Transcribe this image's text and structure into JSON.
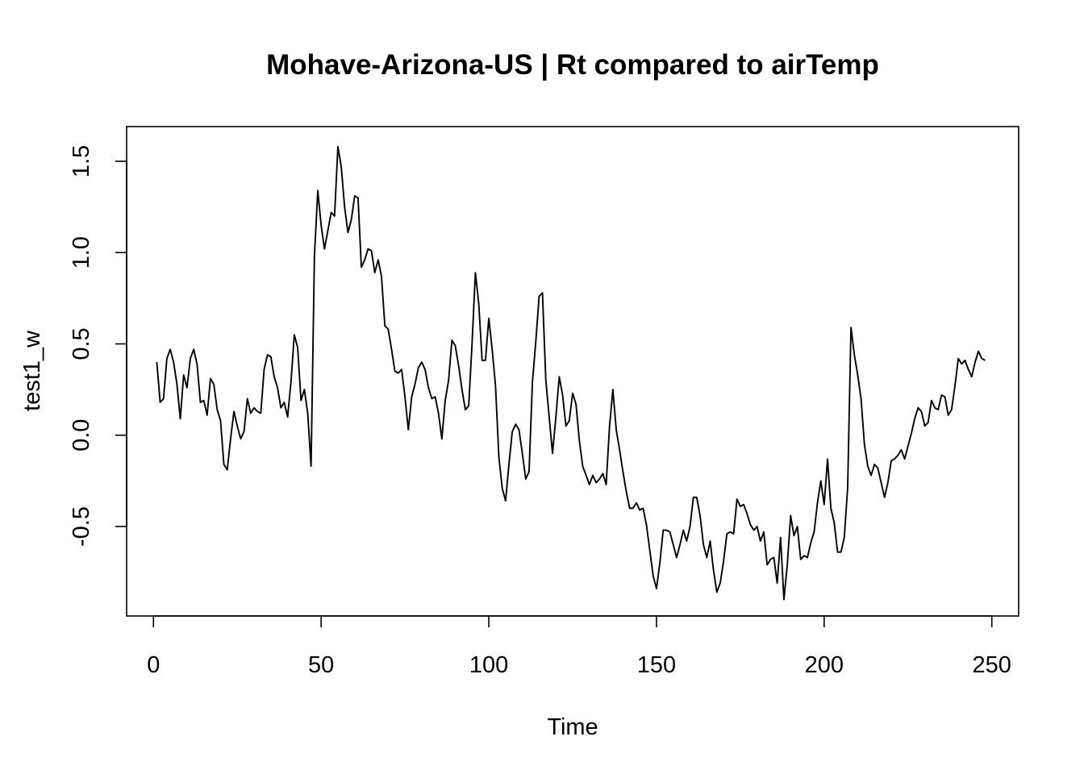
{
  "chart_data": {
    "type": "line",
    "title": "Mohave-Arizona-US | Rt compared to airTemp",
    "xlabel": "Time",
    "ylabel": "test1_w",
    "xlim": [
      -8,
      258
    ],
    "ylim": [
      -0.99,
      1.69
    ],
    "x_ticks": [
      0,
      50,
      100,
      150,
      200,
      250
    ],
    "x_tick_labels": [
      "0",
      "50",
      "100",
      "150",
      "200",
      "250"
    ],
    "y_ticks": [
      -0.5,
      0.0,
      0.5,
      1.0,
      1.5
    ],
    "y_tick_labels": [
      "-0.5",
      "0.0",
      "0.5",
      "1.0",
      "1.5"
    ],
    "grid": false,
    "legend": "none",
    "series": [
      {
        "x_start": 1,
        "x_step": 1,
        "color": "#000000",
        "values": [
          0.4,
          0.18,
          0.2,
          0.42,
          0.47,
          0.4,
          0.28,
          0.09,
          0.33,
          0.26,
          0.42,
          0.47,
          0.39,
          0.18,
          0.19,
          0.11,
          0.31,
          0.28,
          0.14,
          0.08,
          -0.16,
          -0.19,
          -0.02,
          0.13,
          0.05,
          -0.02,
          0.02,
          0.2,
          0.12,
          0.15,
          0.13,
          0.12,
          0.36,
          0.44,
          0.43,
          0.32,
          0.26,
          0.15,
          0.18,
          0.1,
          0.29,
          0.55,
          0.48,
          0.19,
          0.25,
          0.12,
          -0.17,
          0.98,
          1.34,
          1.15,
          1.02,
          1.12,
          1.22,
          1.2,
          1.58,
          1.47,
          1.25,
          1.11,
          1.18,
          1.31,
          1.3,
          0.92,
          0.96,
          1.02,
          1.01,
          0.89,
          0.96,
          0.87,
          0.6,
          0.58,
          0.47,
          0.35,
          0.34,
          0.36,
          0.21,
          0.03,
          0.21,
          0.28,
          0.37,
          0.4,
          0.36,
          0.26,
          0.2,
          0.21,
          0.12,
          -0.02,
          0.19,
          0.3,
          0.52,
          0.49,
          0.38,
          0.25,
          0.14,
          0.16,
          0.5,
          0.89,
          0.72,
          0.41,
          0.41,
          0.64,
          0.47,
          0.27,
          -0.12,
          -0.29,
          -0.36,
          -0.16,
          0.02,
          0.06,
          0.03,
          -0.1,
          -0.24,
          -0.2,
          0.29,
          0.51,
          0.76,
          0.78,
          0.3,
          0.1,
          -0.1,
          0.1,
          0.32,
          0.22,
          0.05,
          0.08,
          0.23,
          0.17,
          -0.03,
          -0.17,
          -0.22,
          -0.27,
          -0.22,
          -0.26,
          -0.24,
          -0.21,
          -0.27,
          0.05,
          0.25,
          0.03,
          -0.08,
          -0.2,
          -0.31,
          -0.4,
          -0.4,
          -0.37,
          -0.41,
          -0.4,
          -0.49,
          -0.63,
          -0.77,
          -0.84,
          -0.7,
          -0.52,
          -0.52,
          -0.53,
          -0.6,
          -0.67,
          -0.6,
          -0.52,
          -0.58,
          -0.5,
          -0.34,
          -0.34,
          -0.44,
          -0.6,
          -0.67,
          -0.58,
          -0.74,
          -0.86,
          -0.81,
          -0.69,
          -0.54,
          -0.53,
          -0.54,
          -0.35,
          -0.39,
          -0.38,
          -0.43,
          -0.49,
          -0.52,
          -0.5,
          -0.58,
          -0.53,
          -0.71,
          -0.68,
          -0.67,
          -0.81,
          -0.56,
          -0.9,
          -0.71,
          -0.44,
          -0.55,
          -0.5,
          -0.68,
          -0.66,
          -0.67,
          -0.59,
          -0.53,
          -0.37,
          -0.25,
          -0.38,
          -0.13,
          -0.4,
          -0.48,
          -0.64,
          -0.64,
          -0.56,
          -0.29,
          0.59,
          0.44,
          0.33,
          0.2,
          -0.05,
          -0.17,
          -0.22,
          -0.16,
          -0.18,
          -0.26,
          -0.34,
          -0.26,
          -0.14,
          -0.13,
          -0.11,
          -0.08,
          -0.13,
          -0.06,
          0.01,
          0.09,
          0.15,
          0.13,
          0.05,
          0.07,
          0.19,
          0.15,
          0.14,
          0.22,
          0.21,
          0.11,
          0.14,
          0.27,
          0.42,
          0.39,
          0.41,
          0.36,
          0.32,
          0.4,
          0.46,
          0.42,
          0.41
        ]
      }
    ]
  }
}
